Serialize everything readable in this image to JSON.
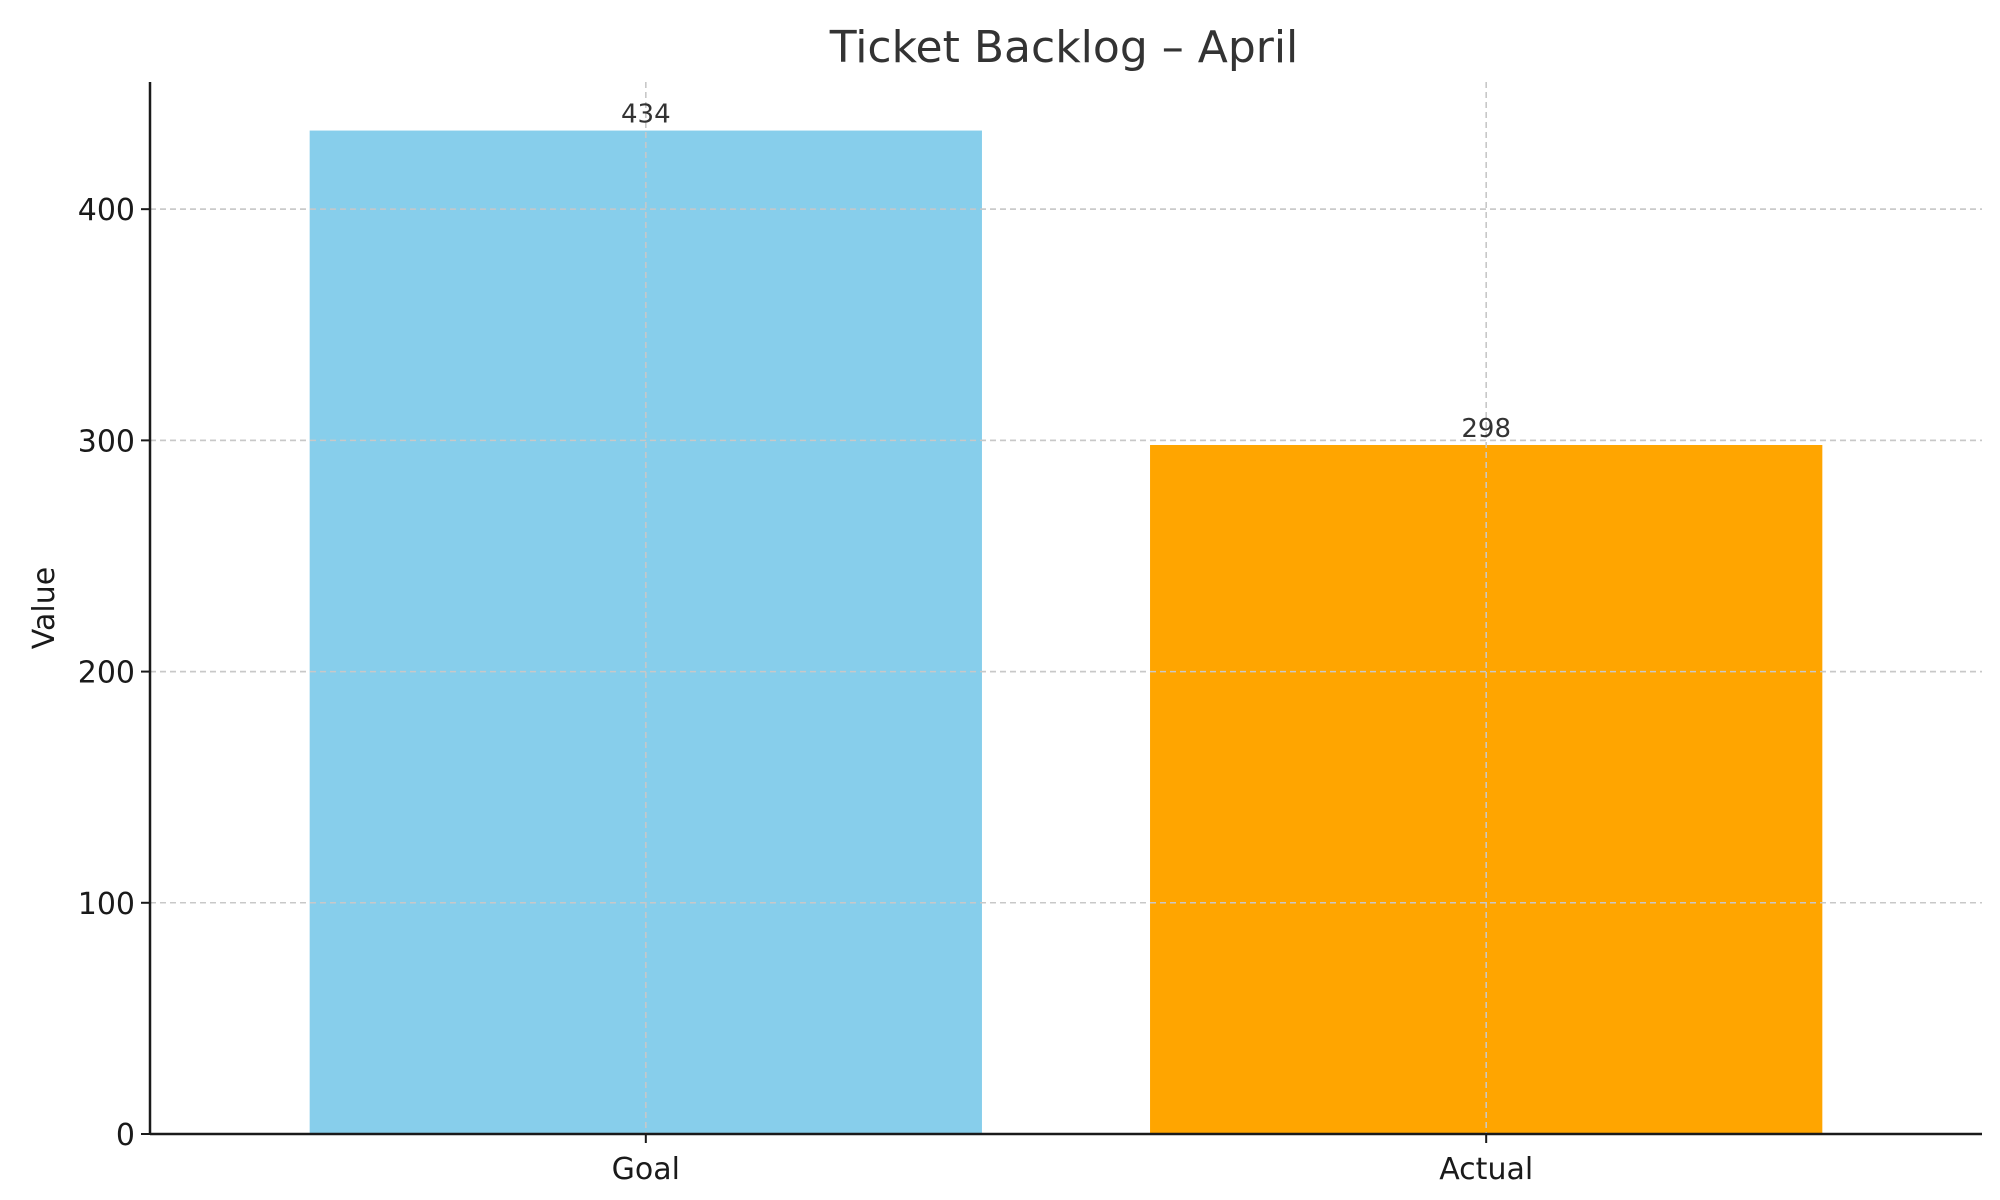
{
  "chart_data": {
    "type": "bar",
    "title": "Ticket Backlog – April",
    "xlabel": "",
    "ylabel": "Value",
    "categories": [
      "Goal",
      "Actual"
    ],
    "values": [
      434,
      298
    ],
    "colors": [
      "#87CEEB",
      "#FFA500"
    ],
    "ylim": [
      0,
      455
    ],
    "yticks": [
      0,
      100,
      200,
      300,
      400
    ],
    "grid": true,
    "data_labels": [
      "434",
      "298"
    ]
  }
}
